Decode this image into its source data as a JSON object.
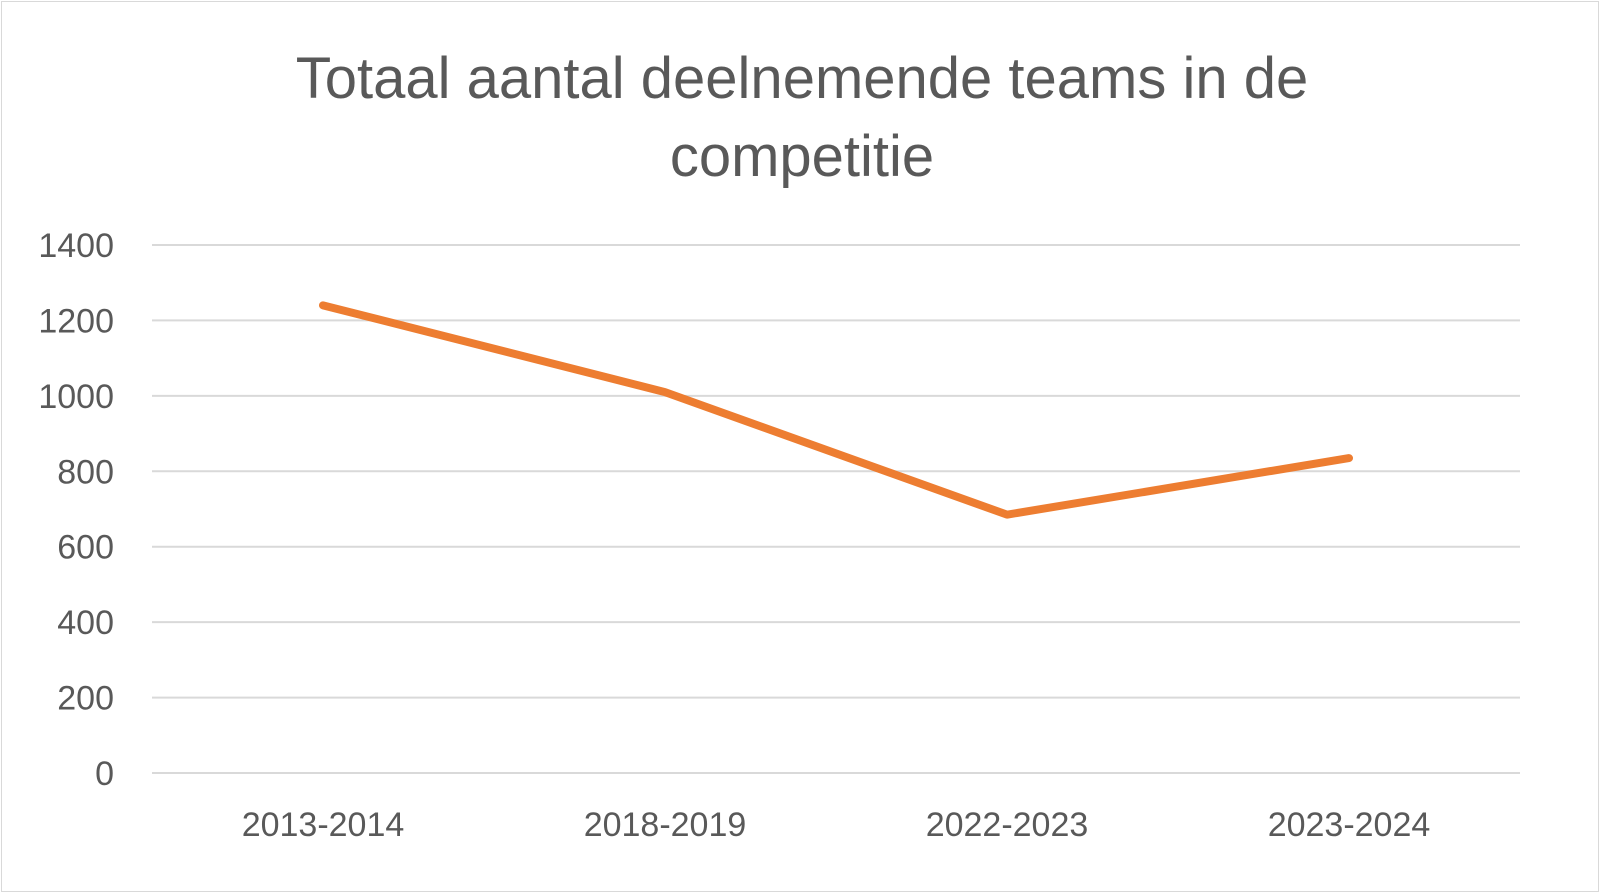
{
  "chart_data": {
    "type": "line",
    "title": "Totaal aantal deelnemende teams in de competitie",
    "xlabel": "",
    "ylabel": "",
    "categories": [
      "2013-2014",
      "2018-2019",
      "2022-2023",
      "2023-2024"
    ],
    "series": [
      {
        "values": [
          1240,
          1010,
          685,
          835
        ]
      }
    ],
    "ylim": [
      0,
      1400
    ],
    "yticks": [
      0,
      200,
      400,
      600,
      800,
      1000,
      1200,
      1400
    ],
    "grid": true,
    "legend": "none",
    "line_color": "#ED7D31",
    "grid_color": "#d9d9d9",
    "text_color": "#595959"
  }
}
